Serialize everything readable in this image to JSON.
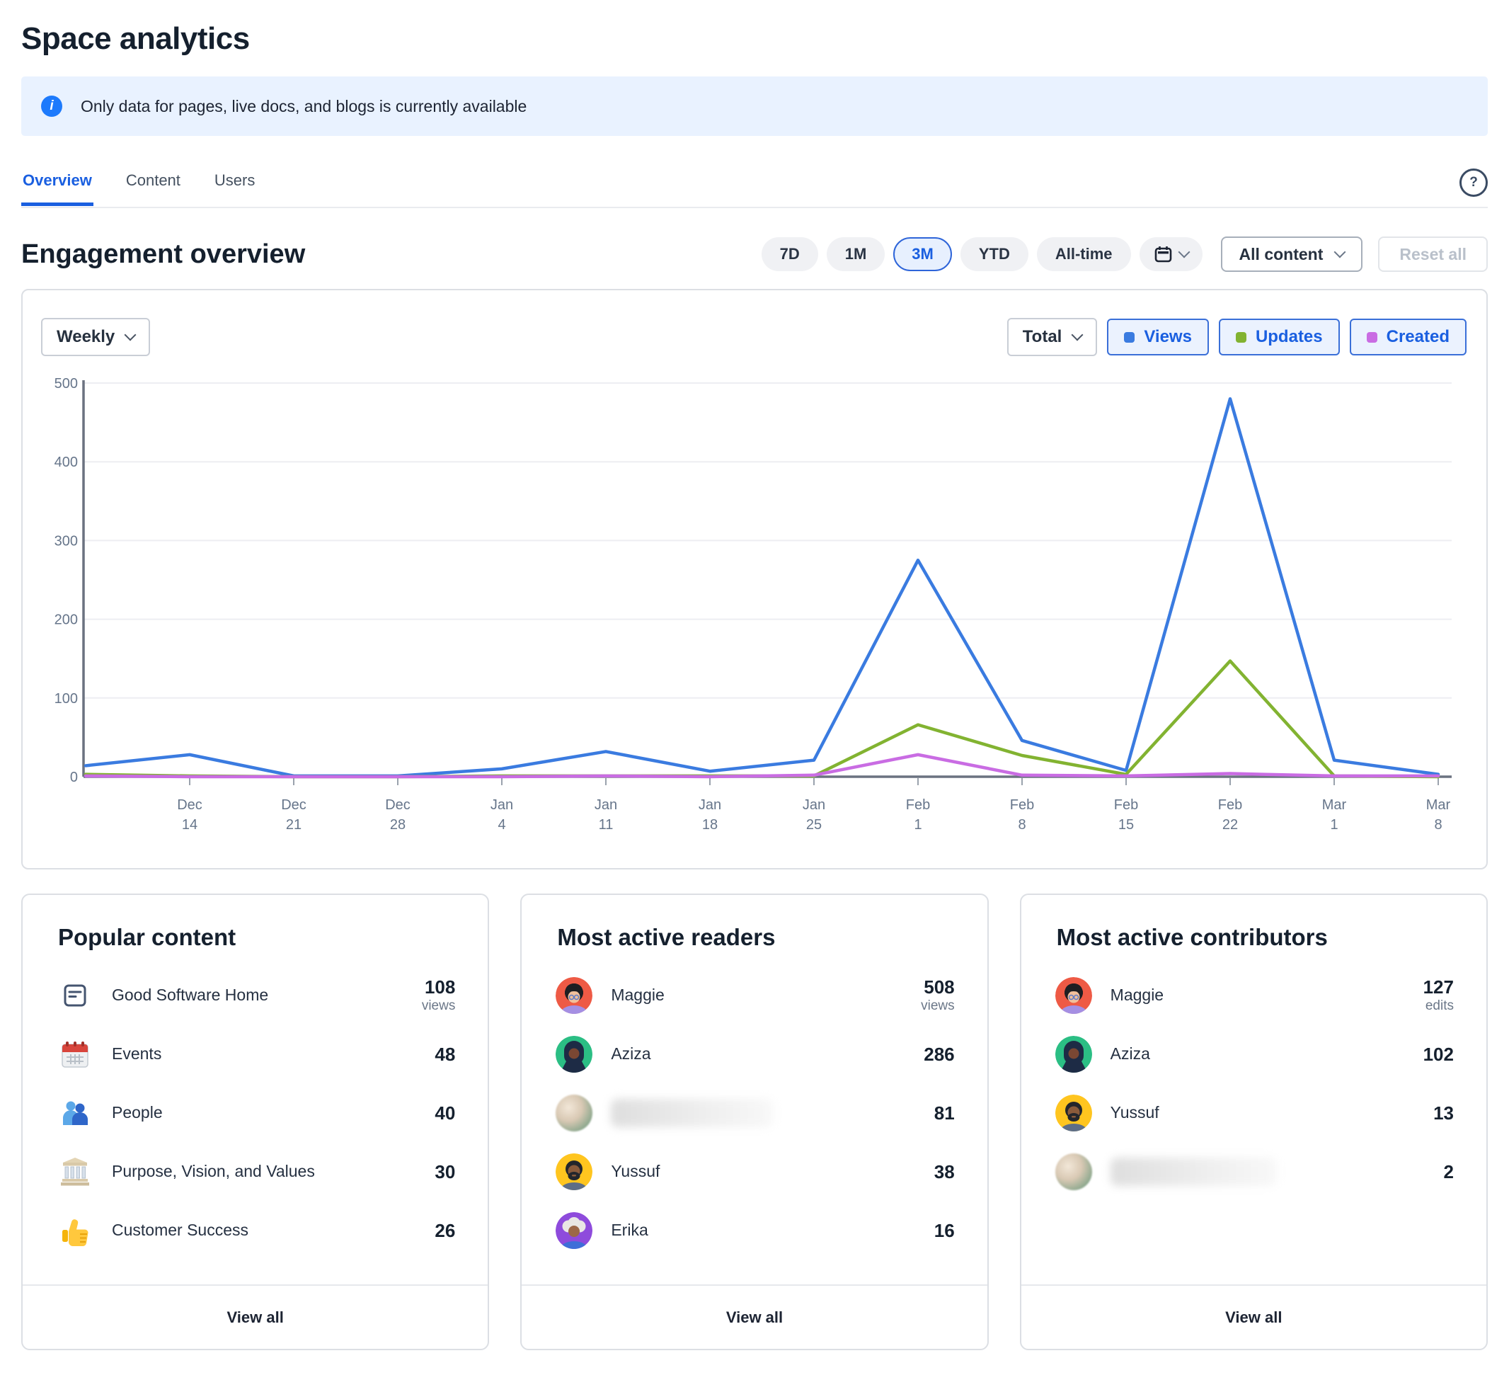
{
  "page": {
    "title": "Space analytics"
  },
  "icons": {
    "help": "?",
    "info": "i"
  },
  "banner": {
    "text": "Only data for pages, live docs, and blogs is currently available"
  },
  "tabs": {
    "items": [
      {
        "label": "Overview",
        "active": true
      },
      {
        "label": "Content",
        "active": false
      },
      {
        "label": "Users",
        "active": false
      }
    ]
  },
  "section": {
    "title": "Engagement overview"
  },
  "filters": {
    "ranges": [
      {
        "label": "7D",
        "selected": false
      },
      {
        "label": "1M",
        "selected": false
      },
      {
        "label": "3M",
        "selected": true
      },
      {
        "label": "YTD",
        "selected": false
      },
      {
        "label": "All-time",
        "selected": false
      }
    ],
    "content_select": {
      "label": "All content"
    },
    "reset": {
      "label": "Reset all",
      "disabled": true
    }
  },
  "chart_controls": {
    "granularity": {
      "label": "Weekly"
    },
    "metric": {
      "label": "Total"
    },
    "legend": [
      {
        "label": "Views",
        "color": "#3a7be0"
      },
      {
        "label": "Updates",
        "color": "#82b331"
      },
      {
        "label": "Created",
        "color": "#c96ce3"
      }
    ]
  },
  "chart_data": {
    "type": "line",
    "title": "Engagement overview",
    "granularity": "Weekly",
    "metric": "Total",
    "ylim": [
      0,
      500
    ],
    "yticks": [
      0,
      100,
      200,
      300,
      400,
      500
    ],
    "grid": true,
    "legend_position": "top-right",
    "x_tick_labels": [
      "Dec 14",
      "Dec 21",
      "Dec 28",
      "Jan 4",
      "Jan 11",
      "Jan 18",
      "Jan 25",
      "Feb 1",
      "Feb 8",
      "Feb 15",
      "Feb 22",
      "Mar 1",
      "Mar 8"
    ],
    "note": "each series has 14 weekly points; the first point sits on the y-axis one week before the first labeled tick",
    "series": [
      {
        "name": "Views",
        "color": "#3a7be0",
        "values": [
          14,
          28,
          1,
          1,
          10,
          32,
          7,
          21,
          275,
          46,
          8,
          480,
          21,
          3
        ]
      },
      {
        "name": "Updates",
        "color": "#82b331",
        "values": [
          3,
          1,
          0,
          0,
          1,
          1,
          1,
          1,
          66,
          27,
          3,
          147,
          1,
          0
        ]
      },
      {
        "name": "Created",
        "color": "#c96ce3",
        "values": [
          1,
          0,
          0,
          0,
          0,
          1,
          0,
          2,
          28,
          2,
          1,
          4,
          1,
          1
        ]
      }
    ]
  },
  "avatars": {
    "maggie": {
      "bg": "#ee5a45"
    },
    "aziza": {
      "bg": "#2bbe84"
    },
    "yussuf": {
      "bg": "#ffc51f"
    },
    "erika": {
      "bg": "#8e4bdc"
    },
    "photo": {
      "bg": "#d9cec0"
    }
  },
  "cards": [
    {
      "id": "popular-content",
      "title": "Popular content",
      "footer": "View all",
      "items": [
        {
          "icon": "page-icon",
          "label": "Good Software Home",
          "value": "108",
          "unit": "views"
        },
        {
          "icon": "calendar-emoji-icon",
          "label": "Events",
          "value": "48"
        },
        {
          "icon": "people-emoji-icon",
          "label": "People",
          "value": "40"
        },
        {
          "icon": "building-emoji-icon",
          "label": "Purpose, Vision, and Values",
          "value": "30"
        },
        {
          "icon": "thumbsup-emoji-icon",
          "label": "Customer Success",
          "value": "26"
        }
      ]
    },
    {
      "id": "most-active-readers",
      "title": "Most active readers",
      "footer": "View all",
      "items": [
        {
          "avatar": "maggie",
          "label": "Maggie",
          "value": "508",
          "unit": "views"
        },
        {
          "avatar": "aziza",
          "label": "Aziza",
          "value": "286"
        },
        {
          "avatar": "photo",
          "label": "",
          "value": "81",
          "blurred": true
        },
        {
          "avatar": "yussuf",
          "label": "Yussuf",
          "value": "38"
        },
        {
          "avatar": "erika",
          "label": "Erika",
          "value": "16"
        }
      ]
    },
    {
      "id": "most-active-contributors",
      "title": "Most active contributors",
      "footer": "View all",
      "items": [
        {
          "avatar": "maggie",
          "label": "Maggie",
          "value": "127",
          "unit": "edits"
        },
        {
          "avatar": "aziza",
          "label": "Aziza",
          "value": "102"
        },
        {
          "avatar": "yussuf",
          "label": "Yussuf",
          "value": "13"
        },
        {
          "avatar": "photo",
          "label": "",
          "value": "2",
          "blurred": true
        }
      ]
    }
  ]
}
